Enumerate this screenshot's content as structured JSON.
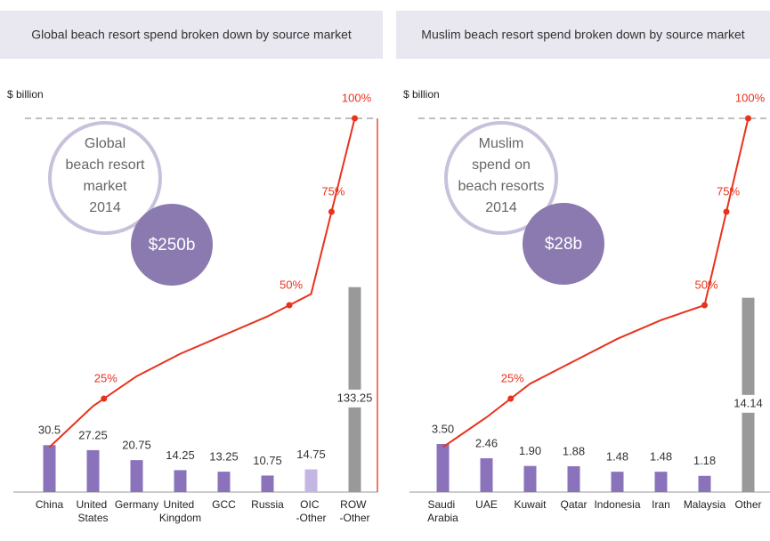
{
  "chart_data": [
    {
      "type": "bar",
      "title": "Global beach resort spend broken down by source market",
      "ylabel": "$ billion",
      "annotation": [
        "Global",
        "beach resort",
        "market",
        "2014"
      ],
      "annotation_total": "$250b",
      "categories": [
        "China",
        "United States",
        "Germany",
        "United Kingdom",
        "GCC",
        "Russia",
        "OIC -Other",
        "ROW -Other"
      ],
      "ylim": [
        0,
        243
      ],
      "y2lim": [
        0,
        100
      ],
      "series": [
        {
          "type": "bar",
          "values": [
            30.5,
            27.25,
            20.75,
            14.25,
            13.25,
            10.75,
            14.75,
            133.25
          ],
          "colors": [
            "#8a73bb",
            "#8a73bb",
            "#8a73bb",
            "#8a73bb",
            "#8a73bb",
            "#8a73bb",
            "#c4b6e2",
            "#999999"
          ]
        },
        {
          "type": "line",
          "axis": "y2",
          "color": "#e8321e",
          "values": [
            12,
            23,
            31,
            37,
            42,
            47,
            53,
            100
          ]
        }
      ],
      "markers": [
        {
          "value": 25,
          "label": "25%"
        },
        {
          "value": 50,
          "label": "50%"
        },
        {
          "value": 75,
          "label": "75%"
        },
        {
          "value": 100,
          "label": "100%"
        }
      ]
    },
    {
      "type": "bar",
      "title": "Muslim beach resort spend broken down by source market",
      "ylabel": "$ billion",
      "annotation": [
        "Muslim",
        "spend on",
        "beach resorts",
        "2014"
      ],
      "annotation_total": "$28b",
      "categories": [
        "Saudi Arabia",
        "UAE",
        "Kuwait",
        "Qatar",
        "Indonesia",
        "Iran",
        "Malaysia",
        "Other"
      ],
      "ylim": [
        0,
        27.2
      ],
      "y2lim": [
        0,
        100
      ],
      "series": [
        {
          "type": "bar",
          "values": [
            3.5,
            2.46,
            1.9,
            1.88,
            1.48,
            1.48,
            1.18,
            14.14
          ],
          "value_labels": [
            "3.50",
            "2.46",
            "1.90",
            "1.88",
            "1.48",
            "1.48",
            "1.18",
            "14.14"
          ],
          "colors": [
            "#8a73bb",
            "#8a73bb",
            "#8a73bb",
            "#8a73bb",
            "#8a73bb",
            "#8a73bb",
            "#8a73bb",
            "#999999"
          ]
        },
        {
          "type": "line",
          "axis": "y2",
          "color": "#e8321e",
          "values": [
            12,
            20,
            29,
            35,
            41,
            46,
            50,
            100
          ]
        }
      ],
      "markers": [
        {
          "value": 25,
          "label": "25%"
        },
        {
          "value": 50,
          "label": "50%"
        },
        {
          "value": 75,
          "label": "75%"
        },
        {
          "value": 100,
          "label": "100%"
        }
      ]
    }
  ]
}
